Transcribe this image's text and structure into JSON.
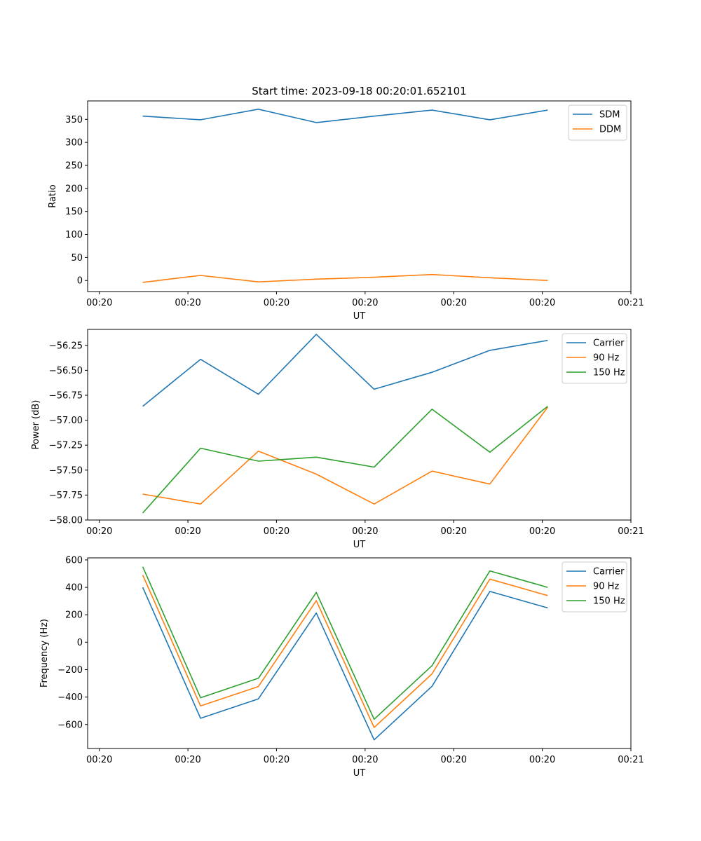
{
  "chart_data": [
    {
      "type": "line",
      "title": "Start time: 2023-09-18 00:20:01.652101",
      "xlabel": "UT",
      "ylabel": "Ratio",
      "xticks": [
        "00:20",
        "00:20",
        "00:20",
        "00:20",
        "00:20",
        "00:20",
        "00:21"
      ],
      "xtick_fracs": [
        0.0,
        0.1667,
        0.3333,
        0.5,
        0.6667,
        0.8333,
        1.0
      ],
      "xrange_frac": [
        -0.022,
        1.0
      ],
      "x": [
        0.0816,
        0.1905,
        0.2993,
        0.4082,
        0.517,
        0.6259,
        0.7347,
        0.8435
      ],
      "ylim": [
        -24,
        390
      ],
      "yticks": [
        0,
        50,
        100,
        150,
        200,
        250,
        300,
        350
      ],
      "legend": "top-right",
      "series": [
        {
          "name": "SDM",
          "color": "#1f77b4",
          "values": [
            357,
            349,
            372,
            343,
            357,
            370,
            349,
            370
          ]
        },
        {
          "name": "DDM",
          "color": "#ff7f0e",
          "values": [
            -4,
            11,
            -3,
            3,
            7,
            13,
            6,
            0
          ]
        }
      ]
    },
    {
      "type": "line",
      "title": "",
      "xlabel": "UT",
      "ylabel": "Power (dB)",
      "xticks": [
        "00:20",
        "00:20",
        "00:20",
        "00:20",
        "00:20",
        "00:20",
        "00:21"
      ],
      "xtick_fracs": [
        0.0,
        0.1667,
        0.3333,
        0.5,
        0.6667,
        0.8333,
        1.0
      ],
      "xrange_frac": [
        -0.022,
        1.0
      ],
      "x": [
        0.0816,
        0.1905,
        0.2993,
        0.4082,
        0.517,
        0.6259,
        0.7347,
        0.8435
      ],
      "ylim": [
        -58.0,
        -56.09
      ],
      "yticks": [
        -58.0,
        -57.75,
        -57.5,
        -57.25,
        -57.0,
        -56.75,
        -56.5,
        -56.25
      ],
      "ytick_labels": [
        "−58.00",
        "−57.75",
        "−57.50",
        "−57.25",
        "−57.00",
        "−56.75",
        "−56.50",
        "−56.25"
      ],
      "legend": "top-right",
      "series": [
        {
          "name": "Carrier",
          "color": "#1f77b4",
          "values": [
            -56.86,
            -56.39,
            -56.74,
            -56.14,
            -56.69,
            -56.52,
            -56.3,
            -56.2
          ]
        },
        {
          "name": "90 Hz",
          "color": "#ff7f0e",
          "values": [
            -57.74,
            -57.84,
            -57.31,
            -57.54,
            -57.84,
            -57.51,
            -57.64,
            -56.87
          ]
        },
        {
          "name": "150 Hz",
          "color": "#2ca02c",
          "values": [
            -57.93,
            -57.28,
            -57.41,
            -57.37,
            -57.47,
            -56.89,
            -57.32,
            -56.86
          ]
        }
      ]
    },
    {
      "type": "line",
      "title": "",
      "xlabel": "UT",
      "ylabel": "Frequency (Hz)",
      "xticks": [
        "00:20",
        "00:20",
        "00:20",
        "00:20",
        "00:20",
        "00:20",
        "00:21"
      ],
      "xtick_fracs": [
        0.0,
        0.1667,
        0.3333,
        0.5,
        0.6667,
        0.8333,
        1.0
      ],
      "xrange_frac": [
        -0.022,
        1.0
      ],
      "x": [
        0.0816,
        0.1905,
        0.2993,
        0.4082,
        0.517,
        0.6259,
        0.7347,
        0.8435
      ],
      "ylim": [
        -775,
        615
      ],
      "yticks": [
        -600,
        -400,
        -200,
        0,
        200,
        400,
        600
      ],
      "ytick_labels": [
        "−600",
        "−400",
        "−200",
        "0",
        "200",
        "400",
        "600"
      ],
      "legend": "top-right",
      "series": [
        {
          "name": "Carrier",
          "color": "#1f77b4",
          "values": [
            400,
            -555,
            -413,
            213,
            -712,
            -321,
            370,
            250
          ]
        },
        {
          "name": "90 Hz",
          "color": "#ff7f0e",
          "values": [
            490,
            -465,
            -323,
            303,
            -622,
            -231,
            460,
            340
          ]
        },
        {
          "name": "150 Hz",
          "color": "#2ca02c",
          "values": [
            550,
            -405,
            -263,
            363,
            -562,
            -171,
            520,
            400
          ]
        }
      ]
    }
  ]
}
